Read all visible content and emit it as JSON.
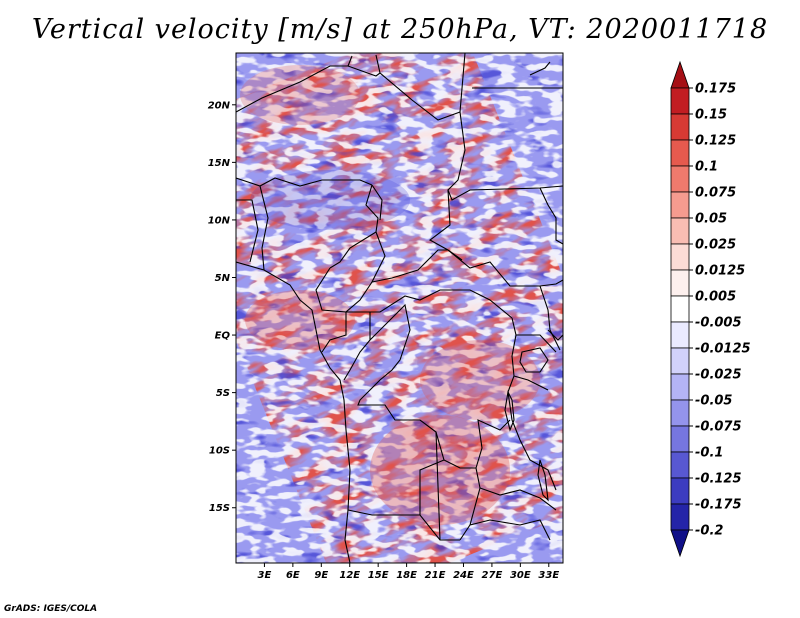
{
  "title": "Vertical velocity [m/s] at 250hPa, VT: 2020011718",
  "credit": "GrADS: IGES/COLA",
  "map": {
    "lat_ticks": [
      "20N",
      "15N",
      "10N",
      "5N",
      "EQ",
      "5S",
      "10S",
      "15S"
    ],
    "lat_values": [
      20,
      15,
      10,
      5,
      0,
      -5,
      -10,
      -15
    ],
    "lon_ticks": [
      "3E",
      "6E",
      "9E",
      "12E",
      "15E",
      "18E",
      "21E",
      "24E",
      "27E",
      "30E",
      "33E"
    ],
    "lon_values": [
      3,
      6,
      9,
      12,
      15,
      18,
      21,
      24,
      27,
      30,
      33
    ],
    "lat_range": [
      -19.8,
      24.5
    ],
    "lon_range": [
      0,
      34.5
    ]
  },
  "colorbar": {
    "labels": [
      "0.175",
      "0.15",
      "0.125",
      "0.1",
      "0.075",
      "0.05",
      "0.025",
      "0.0125",
      "0.005",
      "-0.005",
      "-0.0125",
      "-0.025",
      "-0.05",
      "-0.075",
      "-0.1",
      "-0.125",
      "-0.175",
      "-0.2"
    ],
    "colors": [
      "#a50f15",
      "#c21d22",
      "#d73a34",
      "#e65a4e",
      "#ef7a6d",
      "#f59b8f",
      "#f9bdb3",
      "#fcdcd6",
      "#fdf0ee",
      "#ffffff",
      "#eaeaff",
      "#d2d2fb",
      "#b4b4f5",
      "#9494ec",
      "#7676e0",
      "#5858d2",
      "#3c3cc0",
      "#2424a8",
      "#101088"
    ]
  }
}
